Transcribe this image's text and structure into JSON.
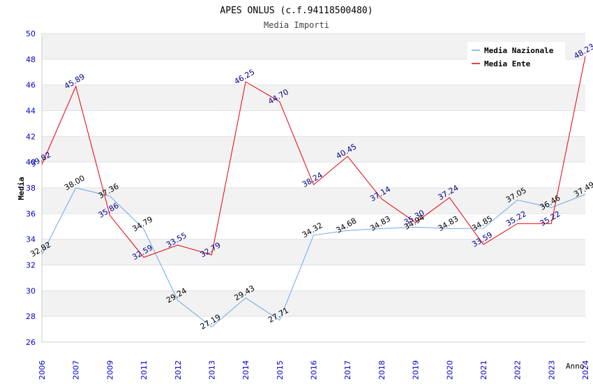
{
  "chart_data": {
    "type": "line",
    "title": "APES ONLUS (c.f.94118500480)",
    "subtitle": "Media Importi",
    "xlabel": "Anno",
    "ylabel": "Media",
    "ylim": [
      26,
      50
    ],
    "yticks": [
      26,
      28,
      30,
      32,
      34,
      36,
      38,
      40,
      42,
      44,
      46,
      48,
      50
    ],
    "grid": true,
    "legend_position": "top-right",
    "categories": [
      "2006",
      "2007",
      "2009",
      "2011",
      "2012",
      "2013",
      "2014",
      "2015",
      "2016",
      "2017",
      "2018",
      "2019",
      "2020",
      "2021",
      "2022",
      "2023",
      "2024"
    ],
    "series": [
      {
        "name": "Media Nazionale",
        "color": "#6fa8e8",
        "label_color": "#000000",
        "values": [
          32.82,
          38.0,
          37.36,
          34.79,
          29.24,
          27.19,
          29.43,
          27.71,
          34.32,
          34.68,
          34.83,
          34.94,
          34.83,
          34.85,
          37.05,
          36.46,
          37.49
        ],
        "labels": [
          "32.82",
          "38.00",
          "37.36",
          "34.79",
          "29.24",
          "27.19",
          "29.43",
          "27.71",
          "34.32",
          "34.68",
          "34.83",
          "34.94",
          "34.83",
          "34.85",
          "37.05",
          "36.46",
          "37.49"
        ]
      },
      {
        "name": "Media Ente",
        "color": "#e8000b",
        "label_color": "#00008b",
        "values": [
          39.82,
          45.89,
          35.86,
          32.59,
          33.55,
          32.79,
          46.25,
          44.7,
          38.24,
          40.45,
          37.14,
          35.3,
          37.24,
          33.59,
          35.22,
          35.22,
          48.23
        ],
        "labels": [
          "39.82",
          "45.89",
          "35.86",
          "32.59",
          "33.55",
          "32.79",
          "46.25",
          "44.70",
          "38.24",
          "40.45",
          "37.14",
          "35.30",
          "37.24",
          "33.59",
          "35.22",
          "35.22",
          "48.23"
        ]
      }
    ]
  },
  "colors": {
    "band": "#f2f2f2",
    "gridline": "#ffffff",
    "axis_text": "#0000cd",
    "title_text": "#000000"
  }
}
